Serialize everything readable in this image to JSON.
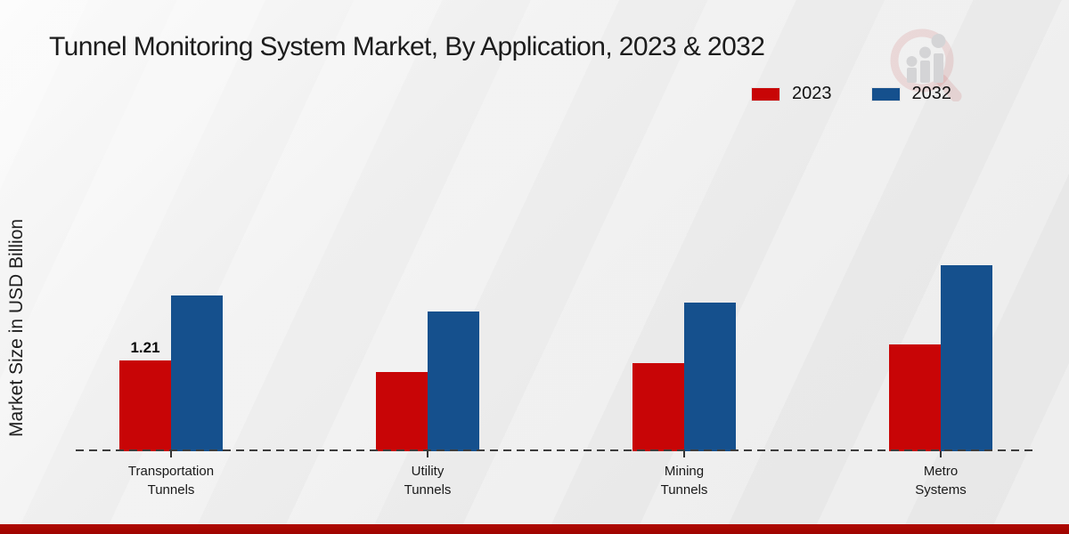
{
  "chart_data": {
    "type": "bar",
    "title": "Tunnel Monitoring System Market, By Application, 2023 & 2032",
    "ylabel": "Market Size in USD Billion",
    "xlabel": "",
    "categories": [
      "Transportation\nTunnels",
      "Utility\nTunnels",
      "Mining\nTunnels",
      "Metro\nSystems"
    ],
    "series": [
      {
        "name": "2023",
        "color": "#c80506",
        "values": [
          1.21,
          1.06,
          1.17,
          1.42
        ]
      },
      {
        "name": "2032",
        "color": "#15508d",
        "values": [
          2.08,
          1.86,
          1.98,
          2.48
        ]
      }
    ],
    "value_labels": [
      {
        "series_index": 0,
        "category_index": 0,
        "text": "1.21"
      }
    ],
    "ylim": [
      0,
      2.6
    ],
    "grid": false,
    "legend_position": "top-right",
    "baseline_style": "dashed",
    "accent_red": "#c80506",
    "accent_blue": "#15508d"
  },
  "footer": {
    "color": "#b00a02"
  },
  "watermark": {
    "icon": "magnifier-bar-chart-logo"
  }
}
